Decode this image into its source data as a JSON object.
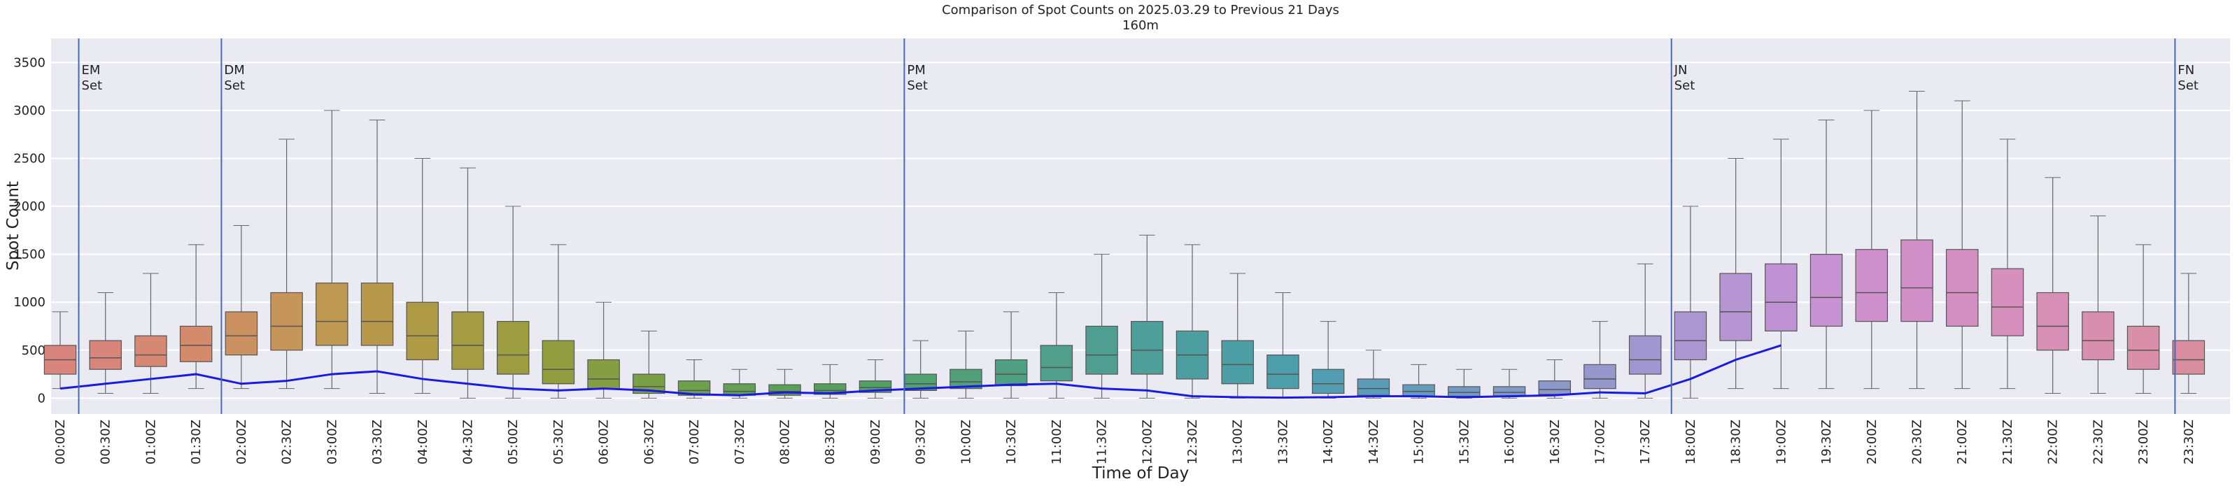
{
  "chart_data": {
    "type": "box",
    "title": "Comparison of Spot Counts on 2025.03.29 to Previous 21 Days",
    "subtitle": "160m",
    "x_label": "Time of Day",
    "y_label": "Spot Count",
    "categories": [
      "00:00Z",
      "00:30Z",
      "01:00Z",
      "01:30Z",
      "02:00Z",
      "02:30Z",
      "03:00Z",
      "03:30Z",
      "04:00Z",
      "04:30Z",
      "05:00Z",
      "05:30Z",
      "06:00Z",
      "06:30Z",
      "07:00Z",
      "07:30Z",
      "08:00Z",
      "08:30Z",
      "09:00Z",
      "09:30Z",
      "10:00Z",
      "10:30Z",
      "11:00Z",
      "11:30Z",
      "12:00Z",
      "12:30Z",
      "13:00Z",
      "13:30Z",
      "14:00Z",
      "14:30Z",
      "15:00Z",
      "15:30Z",
      "16:00Z",
      "16:30Z",
      "17:00Z",
      "17:30Z",
      "18:00Z",
      "18:30Z",
      "19:00Z",
      "19:30Z",
      "20:00Z",
      "20:30Z",
      "21:00Z",
      "21:30Z",
      "22:00Z",
      "22:30Z",
      "23:00Z",
      "23:30Z"
    ],
    "q1": [
      250,
      300,
      330,
      380,
      450,
      500,
      550,
      550,
      400,
      300,
      250,
      150,
      100,
      50,
      30,
      30,
      30,
      40,
      60,
      80,
      100,
      130,
      180,
      250,
      250,
      200,
      150,
      100,
      50,
      30,
      20,
      20,
      20,
      40,
      100,
      250,
      400,
      600,
      700,
      750,
      800,
      800,
      750,
      650,
      500,
      400,
      300,
      250
    ],
    "median": [
      400,
      420,
      450,
      550,
      650,
      750,
      800,
      800,
      650,
      550,
      450,
      300,
      200,
      120,
      80,
      70,
      70,
      80,
      110,
      150,
      170,
      250,
      320,
      450,
      500,
      450,
      350,
      250,
      150,
      100,
      70,
      60,
      60,
      90,
      200,
      400,
      600,
      900,
      1000,
      1050,
      1100,
      1150,
      1100,
      950,
      750,
      600,
      500,
      400
    ],
    "q3": [
      550,
      600,
      650,
      750,
      900,
      1100,
      1200,
      1200,
      1000,
      900,
      800,
      600,
      400,
      250,
      180,
      150,
      140,
      150,
      180,
      250,
      300,
      400,
      550,
      750,
      800,
      700,
      600,
      450,
      300,
      200,
      140,
      120,
      120,
      180,
      350,
      650,
      900,
      1300,
      1400,
      1500,
      1550,
      1650,
      1550,
      1350,
      1100,
      900,
      750,
      600
    ],
    "whislo": [
      100,
      50,
      50,
      100,
      100,
      100,
      100,
      50,
      50,
      0,
      0,
      0,
      0,
      0,
      0,
      0,
      0,
      0,
      0,
      0,
      0,
      0,
      0,
      0,
      0,
      0,
      0,
      0,
      0,
      0,
      0,
      0,
      0,
      0,
      0,
      0,
      0,
      100,
      100,
      100,
      100,
      100,
      100,
      100,
      50,
      50,
      50,
      50
    ],
    "whishi": [
      900,
      1100,
      1300,
      1600,
      1800,
      2700,
      3000,
      2900,
      2500,
      2400,
      2000,
      1600,
      1000,
      700,
      400,
      300,
      300,
      350,
      400,
      600,
      700,
      900,
      1100,
      1500,
      1700,
      1600,
      1300,
      1100,
      800,
      500,
      350,
      300,
      300,
      400,
      800,
      1400,
      2000,
      2500,
      2700,
      2900,
      3000,
      3200,
      3100,
      2700,
      2300,
      1900,
      1600,
      1300
    ],
    "colors": [
      "#d9857e",
      "#d8867a",
      "#d68873",
      "#d48b6c",
      "#cc9160",
      "#c6955a",
      "#bf9852",
      "#b8994c",
      "#ae9a45",
      "#a59b42",
      "#9c9c40",
      "#929d3f",
      "#869e42",
      "#7aa046",
      "#6ea04c",
      "#64a052",
      "#5ca058",
      "#56a05e",
      "#52a066",
      "#50a070",
      "#4f9f79",
      "#4f9f82",
      "#4f9f8a",
      "#4f9e92",
      "#4e9e99",
      "#4d9e9f",
      "#4c9ea5",
      "#4d9eab",
      "#539db2",
      "#5b9cb8",
      "#669bbd",
      "#729ac2",
      "#7e99c6",
      "#8a98ca",
      "#9698cd",
      "#a197d0",
      "#ac96d2",
      "#b695d3",
      "#bf93d3",
      "#c792d1",
      "#cd90cd",
      "#d18fc8",
      "#d48fc2",
      "#d68fbc",
      "#d78fb5",
      "#d88fae",
      "#d98fa7",
      "#d98ea0"
    ],
    "line": {
      "color": "#1a1ae0",
      "values": [
        100,
        150,
        200,
        250,
        150,
        180,
        250,
        280,
        200,
        150,
        100,
        80,
        100,
        80,
        40,
        30,
        60,
        50,
        80,
        100,
        120,
        140,
        150,
        100,
        80,
        20,
        10,
        5,
        10,
        20,
        20,
        10,
        20,
        30,
        60,
        50,
        200,
        400,
        550,
        null,
        null,
        null,
        null,
        null,
        null,
        null,
        null,
        null
      ]
    },
    "annotations": [
      {
        "x": 0.41,
        "label": [
          "EM",
          "Set"
        ]
      },
      {
        "x": 3.56,
        "label": [
          "DM",
          "Set"
        ]
      },
      {
        "x": 18.64,
        "label": [
          "PM",
          "Set"
        ]
      },
      {
        "x": 35.58,
        "label": [
          "JN",
          "Set"
        ]
      },
      {
        "x": 46.7,
        "label": [
          "FN",
          "Set"
        ]
      }
    ],
    "annotation_color": "#4a66b8",
    "ylim": [
      -165,
      3750
    ],
    "yticks": [
      0,
      500,
      1000,
      1500,
      2000,
      2500,
      3000,
      3500
    ],
    "grid": true
  }
}
